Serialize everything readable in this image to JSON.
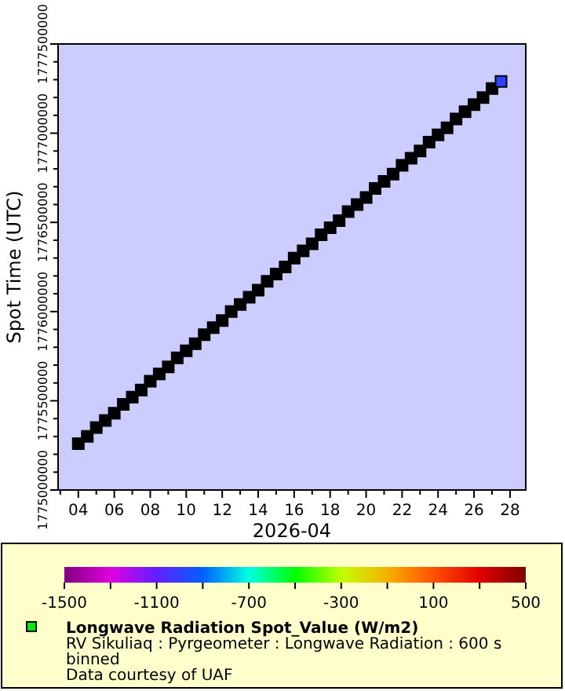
{
  "chart_data": {
    "type": "scatter",
    "xlabel": "2026-04",
    "ylabel": "Spot Time (UTC)",
    "clabel": "Longwave Radiation Spot_Value (W/m2)",
    "annotations": [
      "RV Sikuliaq : Pyrgeometer : Longwave Radiation : 600 s binned",
      "Data courtesy of UAF"
    ],
    "xlim": [
      "2026-04-02T21:00",
      "2026-04-28T21:00"
    ],
    "xticks": [
      {
        "value": "2026-04-03",
        "label": null
      },
      {
        "value": "2026-04-04",
        "label": "04"
      },
      {
        "value": "2026-04-05",
        "label": null
      },
      {
        "value": "2026-04-06",
        "label": "06"
      },
      {
        "value": "2026-04-07",
        "label": null
      },
      {
        "value": "2026-04-08",
        "label": "08"
      },
      {
        "value": "2026-04-09",
        "label": null
      },
      {
        "value": "2026-04-10",
        "label": "10"
      },
      {
        "value": "2026-04-11",
        "label": null
      },
      {
        "value": "2026-04-12",
        "label": "12"
      },
      {
        "value": "2026-04-13",
        "label": null
      },
      {
        "value": "2026-04-14",
        "label": "14"
      },
      {
        "value": "2026-04-15",
        "label": null
      },
      {
        "value": "2026-04-16",
        "label": "16"
      },
      {
        "value": "2026-04-17",
        "label": null
      },
      {
        "value": "2026-04-18",
        "label": "18"
      },
      {
        "value": "2026-04-19",
        "label": null
      },
      {
        "value": "2026-04-20",
        "label": "20"
      },
      {
        "value": "2026-04-21",
        "label": null
      },
      {
        "value": "2026-04-22",
        "label": "22"
      },
      {
        "value": "2026-04-23",
        "label": null
      },
      {
        "value": "2026-04-24",
        "label": "24"
      },
      {
        "value": "2026-04-25",
        "label": null
      },
      {
        "value": "2026-04-26",
        "label": "26"
      },
      {
        "value": "2026-04-27",
        "label": null
      },
      {
        "value": "2026-04-28",
        "label": "28"
      }
    ],
    "ylim": [
      1775000000,
      1777500000
    ],
    "yticks": [
      1775000000,
      {
        "value": 1775100000,
        "label": null
      },
      {
        "value": 1775200000,
        "label": null
      },
      {
        "value": 1775300000,
        "label": null
      },
      {
        "value": 1775400000,
        "label": null
      },
      1775500000,
      {
        "value": 1775600000,
        "label": null
      },
      {
        "value": 1775700000,
        "label": null
      },
      {
        "value": 1775800000,
        "label": null
      },
      {
        "value": 1775900000,
        "label": null
      },
      1776000000,
      {
        "value": 1776100000,
        "label": null
      },
      {
        "value": 1776200000,
        "label": null
      },
      {
        "value": 1776300000,
        "label": null
      },
      {
        "value": 1776400000,
        "label": null
      },
      1776500000,
      {
        "value": 1776600000,
        "label": null
      },
      {
        "value": 1776700000,
        "label": null
      },
      {
        "value": 1776800000,
        "label": null
      },
      {
        "value": 1776900000,
        "label": null
      },
      1777000000,
      {
        "value": 1777100000,
        "label": null
      },
      {
        "value": 1777200000,
        "label": null
      },
      {
        "value": 1777300000,
        "label": null
      },
      {
        "value": 1777400000,
        "label": null
      },
      1777500000
    ],
    "clim": [
      -1500,
      500
    ],
    "cticks": [
      -1500,
      {
        "value": -1300,
        "label": null
      },
      -1100,
      {
        "value": -900,
        "label": null
      },
      -700,
      {
        "value": -500,
        "label": null
      },
      -300,
      {
        "value": -100,
        "label": null
      },
      100,
      {
        "value": 300,
        "label": null
      },
      500
    ],
    "marker": "square",
    "grid": false,
    "series": [
      {
        "color": "#000000",
        "x": [
          "2026-04-04T00:00",
          "2026-04-04T12:00",
          "2026-04-05T00:00",
          "2026-04-05T12:00",
          "2026-04-06T00:00",
          "2026-04-06T12:00",
          "2026-04-07T00:00",
          "2026-04-07T12:00",
          "2026-04-08T00:00",
          "2026-04-08T12:00",
          "2026-04-09T00:00",
          "2026-04-09T12:00",
          "2026-04-10T00:00",
          "2026-04-10T12:00",
          "2026-04-11T00:00",
          "2026-04-11T12:00",
          "2026-04-12T00:00",
          "2026-04-12T12:00",
          "2026-04-13T00:00",
          "2026-04-13T12:00",
          "2026-04-14T00:00",
          "2026-04-14T12:00",
          "2026-04-15T00:00",
          "2026-04-15T12:00",
          "2026-04-16T00:00",
          "2026-04-16T12:00",
          "2026-04-17T00:00",
          "2026-04-17T12:00",
          "2026-04-18T00:00",
          "2026-04-18T12:00",
          "2026-04-19T00:00",
          "2026-04-19T12:00",
          "2026-04-20T00:00",
          "2026-04-20T12:00",
          "2026-04-21T00:00",
          "2026-04-21T12:00",
          "2026-04-22T00:00",
          "2026-04-22T12:00",
          "2026-04-23T00:00",
          "2026-04-23T12:00",
          "2026-04-24T00:00",
          "2026-04-24T12:00",
          "2026-04-25T00:00",
          "2026-04-25T12:00",
          "2026-04-26T00:00",
          "2026-04-26T12:00",
          "2026-04-27T00:00"
        ],
        "values": [
          1775260000,
          1775300000,
          1775350000,
          1775390000,
          1775430000,
          1775480000,
          1775520000,
          1775560000,
          1775610000,
          1775650000,
          1775690000,
          1775740000,
          1775780000,
          1775820000,
          1775870000,
          1775910000,
          1775950000,
          1776000000,
          1776040000,
          1776080000,
          1776120000,
          1776170000,
          1776210000,
          1776250000,
          1776300000,
          1776340000,
          1776380000,
          1776430000,
          1776470000,
          1776510000,
          1776560000,
          1776600000,
          1776640000,
          1776690000,
          1776730000,
          1776770000,
          1776820000,
          1776860000,
          1776900000,
          1776950000,
          1776990000,
          1777030000,
          1777080000,
          1777120000,
          1777160000,
          1777200000,
          1777250000
        ]
      },
      {
        "color": "#3040ff",
        "x": [
          "2026-04-27T12:00"
        ],
        "values": [
          1777290000
        ]
      }
    ]
  }
}
